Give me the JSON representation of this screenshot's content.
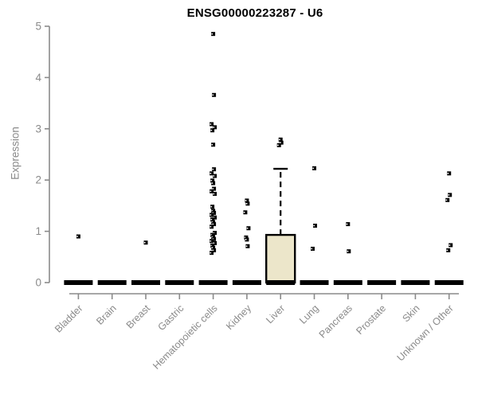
{
  "page": {
    "title": "ENSG00000223287 - U6"
  },
  "chart_data": {
    "type": "box",
    "title": "ENSG00000223287 - U6",
    "ylabel": "Expression",
    "xlabel": "",
    "ylim": [
      0,
      5
    ],
    "yticks": [
      0,
      1,
      2,
      3,
      4,
      5
    ],
    "grid": false,
    "legend": false,
    "categories": [
      "Bladder",
      "Brain",
      "Breast",
      "Gastric",
      "Hematopoietic cells",
      "Kidney",
      "Liver",
      "Lung",
      "Pancreas",
      "Prostate",
      "Skin",
      "Unknown / Other"
    ],
    "series": [
      {
        "category": "Bladder",
        "q1": 0,
        "median": 0,
        "q3": 0,
        "whisker_low": 0,
        "whisker_high": 0,
        "outliers": [
          0.9
        ]
      },
      {
        "category": "Brain",
        "q1": 0,
        "median": 0,
        "q3": 0,
        "whisker_low": 0,
        "whisker_high": 0,
        "outliers": []
      },
      {
        "category": "Breast",
        "q1": 0,
        "median": 0,
        "q3": 0,
        "whisker_low": 0,
        "whisker_high": 0,
        "outliers": [
          0.78
        ]
      },
      {
        "category": "Gastric",
        "q1": 0,
        "median": 0,
        "q3": 0,
        "whisker_low": 0,
        "whisker_high": 0,
        "outliers": []
      },
      {
        "category": "Hematopoietic cells",
        "q1": 0,
        "median": 0,
        "q3": 0,
        "whisker_low": 0,
        "whisker_high": 0,
        "outliers": [
          4.85,
          3.66,
          3.09,
          3.03,
          2.97,
          2.69,
          2.21,
          2.13,
          2.08,
          1.99,
          1.94,
          1.83,
          1.78,
          1.73,
          1.48,
          1.4,
          1.36,
          1.32,
          1.27,
          1.23,
          1.18,
          1.14,
          1.09,
          0.97,
          0.93,
          0.89,
          0.85,
          0.81,
          0.77,
          0.72,
          0.68,
          0.63,
          0.58
        ]
      },
      {
        "category": "Kidney",
        "q1": 0,
        "median": 0,
        "q3": 0,
        "whisker_low": 0,
        "whisker_high": 0,
        "outliers": [
          1.6,
          1.54,
          1.37,
          1.06,
          0.88,
          0.84,
          0.71
        ]
      },
      {
        "category": "Liver",
        "q1": 0,
        "median": 0,
        "q3": 0.93,
        "whisker_low": 0,
        "whisker_high": 2.22,
        "outliers": [
          2.79,
          2.73,
          2.68
        ]
      },
      {
        "category": "Lung",
        "q1": 0,
        "median": 0,
        "q3": 0,
        "whisker_low": 0,
        "whisker_high": 0,
        "outliers": [
          2.23,
          1.11,
          0.66
        ]
      },
      {
        "category": "Pancreas",
        "q1": 0,
        "median": 0,
        "q3": 0,
        "whisker_low": 0,
        "whisker_high": 0,
        "outliers": [
          1.14,
          0.61
        ]
      },
      {
        "category": "Prostate",
        "q1": 0,
        "median": 0,
        "q3": 0,
        "whisker_low": 0,
        "whisker_high": 0,
        "outliers": []
      },
      {
        "category": "Skin",
        "q1": 0,
        "median": 0,
        "q3": 0,
        "whisker_low": 0,
        "whisker_high": 0,
        "outliers": []
      },
      {
        "category": "Unknown / Other",
        "q1": 0,
        "median": 0,
        "q3": 0,
        "whisker_low": 0,
        "whisker_high": 0,
        "outliers": [
          2.13,
          1.71,
          1.61,
          0.73,
          0.63
        ]
      }
    ],
    "colors": {
      "box_fill": "#ece6ca",
      "box_border": "#000000",
      "median": "#000000",
      "outlier": "#000000",
      "axis": "#8a8a8a",
      "labels": "#8a8a8a",
      "title": "#000000",
      "background": "#ffffff"
    }
  }
}
